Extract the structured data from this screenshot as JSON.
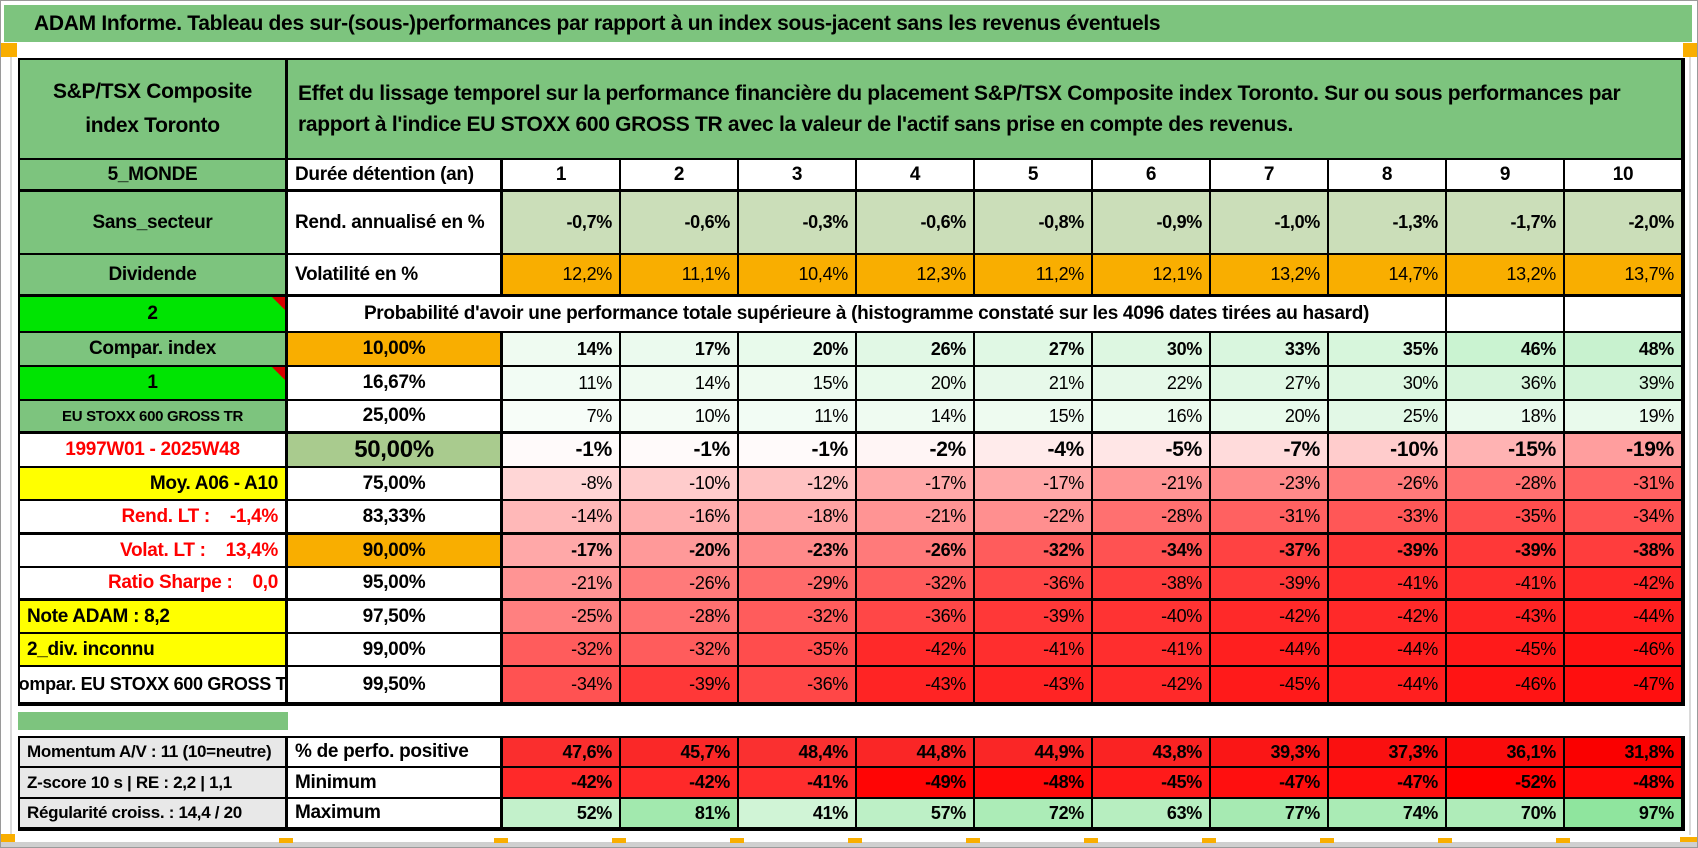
{
  "title": "ADAM Informe. Tableau des sur-(sous-)performances par rapport à un index sous-jacent sans les revenus éventuels",
  "asset_name": "S&P/TSX Composite index Toronto",
  "description": "Effet du lissage temporel sur la performance financière du placement S&P/TSX Composite index Toronto. Sur ou sous performances par rapport à l'indice EU STOXX 600 GROSS TR avec la valeur de l'actif sans prise en compte des revenus.",
  "colors": {
    "header_green": "#7DC47E",
    "bright_green": "#00E402",
    "orange": "#F9AE00",
    "yellow": "#FFFF00",
    "sage": "#CBDEB9",
    "sage_median": "#A9CB8E",
    "gray_label": "#E8E8E8",
    "red_text": "#FF0000"
  },
  "duration_header": {
    "sidebar": "5_MONDE",
    "label": "Durée détention (an)",
    "years": [
      "1",
      "2",
      "3",
      "4",
      "5",
      "6",
      "7",
      "8",
      "9",
      "10"
    ]
  },
  "stat_rows": [
    {
      "sidebar": "Sans_secteur",
      "a_style": "green",
      "label": "Rend. annualisé en %",
      "bold": true,
      "values": [
        "-0,7%",
        "-0,6%",
        "-0,3%",
        "-0,6%",
        "-0,8%",
        "-0,9%",
        "-1,0%",
        "-1,3%",
        "-1,7%",
        "-2,0%"
      ],
      "colors": [
        "#CBDEB9",
        "#CBDEB9",
        "#CBDEB9",
        "#CBDEB9",
        "#CBDEB9",
        "#CBDEB9",
        "#CBDEB9",
        "#CBDEB9",
        "#CBDEB9",
        "#CBDEB9"
      ]
    },
    {
      "sidebar": "Dividende",
      "a_style": "green",
      "label": "Volatilité en %",
      "bold": false,
      "thick": true,
      "values": [
        "12,2%",
        "11,1%",
        "10,4%",
        "12,3%",
        "11,2%",
        "12,1%",
        "13,2%",
        "14,7%",
        "13,2%",
        "13,7%"
      ],
      "colors": [
        "#F9AE00",
        "#F9AE00",
        "#F9AE00",
        "#F9AE00",
        "#F9AE00",
        "#F9AE00",
        "#F9AE00",
        "#F9AE00",
        "#F9AE00",
        "#F9AE00"
      ]
    }
  ],
  "probability_header": {
    "sidebar": "2",
    "text": "Probabilité d'avoir une performance totale supérieure à (histogramme constaté sur les 4096 dates tirées au hasard)"
  },
  "probability_rows": [
    {
      "sidebar": "Compar. index",
      "a_style": "green",
      "threshold": "10,00%",
      "t_style": "orange",
      "bold": true,
      "values": [
        "14%",
        "17%",
        "20%",
        "26%",
        "27%",
        "30%",
        "33%",
        "35%",
        "46%",
        "48%"
      ],
      "colors": [
        "#EFFBF1",
        "#EBFAEE",
        "#E8FAEB",
        "#E1F8E5",
        "#E0F8E4",
        "#DDF7E1",
        "#D9F6DE",
        "#D7F6DC",
        "#CAF3D1",
        "#C8F2CF"
      ]
    },
    {
      "sidebar": "1",
      "a_style": "bright",
      "threshold": "16,67%",
      "t_style": "plain",
      "bold": false,
      "values": [
        "11%",
        "14%",
        "15%",
        "20%",
        "21%",
        "22%",
        "27%",
        "30%",
        "36%",
        "39%"
      ],
      "colors": [
        "#F2FCF4",
        "#EFFBF1",
        "#EEFBF0",
        "#E8FAEB",
        "#E7F9EA",
        "#E6F9E9",
        "#E0F8E4",
        "#DDF7E1",
        "#D6F5DB",
        "#D2F4D8"
      ]
    },
    {
      "sidebar": "EU STOXX 600 GROSS TR",
      "a_style": "smallgreen",
      "threshold": "25,00%",
      "t_style": "plain",
      "bold": false,
      "thick": true,
      "values": [
        "7%",
        "10%",
        "11%",
        "14%",
        "15%",
        "16%",
        "20%",
        "25%",
        "18%",
        "19%"
      ],
      "colors": [
        "#F7FDF8",
        "#F4FCF5",
        "#F2FCF4",
        "#EFFBF1",
        "#EEFBF0",
        "#EDFBEF",
        "#E8FAEB",
        "#E2F8E6",
        "#EAFAED",
        "#E9FAEC"
      ]
    },
    {
      "sidebar": "1997W01 - 2025W48",
      "a_style": "datered",
      "threshold": "50,00%",
      "t_style": "sage",
      "bold": true,
      "big": true,
      "values": [
        "-1%",
        "-1%",
        "-1%",
        "-2%",
        "-4%",
        "-5%",
        "-7%",
        "-10%",
        "-15%",
        "-19%"
      ],
      "colors": [
        "#FFFAFA",
        "#FFFAFA",
        "#FFFAFA",
        "#FFF5F5",
        "#FFEBEB",
        "#FFE6E6",
        "#FFDBDB",
        "#FFCCCC",
        "#FFB3B3",
        "#FF9E9E"
      ]
    },
    {
      "sidebar": "Moy. A06 - A10",
      "a_style": "yright",
      "threshold": "75,00%",
      "t_style": "plain",
      "bold": false,
      "values": [
        "-8%",
        "-10%",
        "-12%",
        "-17%",
        "-17%",
        "-21%",
        "-23%",
        "-26%",
        "-28%",
        "-31%"
      ],
      "colors": [
        "#FFD6D6",
        "#FFCCCC",
        "#FFC2C2",
        "#FFA8A8",
        "#FFA8A8",
        "#FF9494",
        "#FF8A8A",
        "#FF7A7A",
        "#FF7070",
        "#FF6161"
      ]
    },
    {
      "sidebar": "Rend. LT :    -1,4%",
      "a_style": "redright",
      "threshold": "83,33%",
      "t_style": "plain",
      "bold": false,
      "thick": true,
      "values": [
        "-14%",
        "-16%",
        "-18%",
        "-21%",
        "-22%",
        "-28%",
        "-31%",
        "-33%",
        "-35%",
        "-34%"
      ],
      "colors": [
        "#FFB8B8",
        "#FFADAD",
        "#FFA3A3",
        "#FF9494",
        "#FF8F8F",
        "#FF7070",
        "#FF6161",
        "#FF5757",
        "#FF4D4D",
        "#FF5252"
      ]
    },
    {
      "sidebar": "Volat. LT :    13,4%",
      "a_style": "redright",
      "threshold": "90,00%",
      "t_style": "orange",
      "bold": true,
      "values": [
        "-17%",
        "-20%",
        "-23%",
        "-26%",
        "-32%",
        "-34%",
        "-37%",
        "-39%",
        "-39%",
        "-38%"
      ],
      "colors": [
        "#FFA8A8",
        "#FF9999",
        "#FF8A8A",
        "#FF7A7A",
        "#FF5C5C",
        "#FF5252",
        "#FF4242",
        "#FF3838",
        "#FF3838",
        "#FF3D3D"
      ]
    },
    {
      "sidebar": "Ratio Sharpe :    0,0",
      "a_style": "redright",
      "threshold": "95,00%",
      "t_style": "plain",
      "bold": false,
      "thick": true,
      "values": [
        "-21%",
        "-26%",
        "-29%",
        "-32%",
        "-36%",
        "-38%",
        "-39%",
        "-41%",
        "-41%",
        "-42%"
      ],
      "colors": [
        "#FF9494",
        "#FF7A7A",
        "#FF6B6B",
        "#FF5C5C",
        "#FF4747",
        "#FF3D3D",
        "#FF3838",
        "#FF2E2E",
        "#FF2E2E",
        "#FF2929"
      ]
    },
    {
      "sidebar": "Note ADAM : 8,2",
      "a_style": "yleft",
      "threshold": "97,50%",
      "t_style": "plain",
      "bold": false,
      "values": [
        "-25%",
        "-28%",
        "-32%",
        "-36%",
        "-39%",
        "-40%",
        "-42%",
        "-42%",
        "-43%",
        "-44%"
      ],
      "colors": [
        "#FF8080",
        "#FF7070",
        "#FF5C5C",
        "#FF4747",
        "#FF3838",
        "#FF3333",
        "#FF2929",
        "#FF2929",
        "#FF2424",
        "#FF1F1F"
      ]
    },
    {
      "sidebar": "2_div. inconnu",
      "a_style": "yleft",
      "threshold": "99,00%",
      "t_style": "plain",
      "bold": false,
      "values": [
        "-32%",
        "-32%",
        "-35%",
        "-42%",
        "-41%",
        "-41%",
        "-44%",
        "-44%",
        "-45%",
        "-46%"
      ],
      "colors": [
        "#FF5C5C",
        "#FF5C5C",
        "#FF4D4D",
        "#FF2929",
        "#FF2E2E",
        "#FF2E2E",
        "#FF1F1F",
        "#FF1F1F",
        "#FF1A1A",
        "#FF1414"
      ]
    },
    {
      "sidebar": "Compar. EU STOXX 600 GROSS TR",
      "a_style": "plainclip",
      "threshold": "99,50%",
      "t_style": "plain",
      "bold": false,
      "values": [
        "-34%",
        "-39%",
        "-36%",
        "-43%",
        "-43%",
        "-42%",
        "-45%",
        "-44%",
        "-46%",
        "-47%"
      ],
      "colors": [
        "#FF5252",
        "#FF3838",
        "#FF4747",
        "#FF2424",
        "#FF2424",
        "#FF2929",
        "#FF1A1A",
        "#FF1F1F",
        "#FF1414",
        "#FF0F0F"
      ]
    }
  ],
  "bottom_rows": [
    {
      "sidebar": "Momentum A/V : 11 (10=neutre)",
      "label": "% de perfo. positive",
      "values": [
        "47,6%",
        "45,7%",
        "48,4%",
        "44,8%",
        "44,9%",
        "43,8%",
        "39,3%",
        "37,3%",
        "36,1%",
        "31,8%"
      ],
      "colors": [
        "#FA2E2E",
        "#FA2828",
        "#FA3030",
        "#FA2626",
        "#FA2626",
        "#FA2323",
        "#FA1616",
        "#FA1010",
        "#FA0C0C",
        "#FA0000"
      ]
    },
    {
      "sidebar": "Z-score 10 s | RE : 2,2 | 1,1",
      "label": "Minimum",
      "values": [
        "-42%",
        "-42%",
        "-41%",
        "-49%",
        "-48%",
        "-45%",
        "-47%",
        "-47%",
        "-52%",
        "-48%"
      ],
      "colors": [
        "#FF2929",
        "#FF2929",
        "#FF2E2E",
        "#FF0505",
        "#FF0A0A",
        "#FF1A1A",
        "#FF0F0F",
        "#FF0F0F",
        "#FF0000",
        "#FF0A0A"
      ]
    },
    {
      "sidebar": "Régularité croiss. : 14,4 / 20",
      "label": "Maximum",
      "values": [
        "52%",
        "81%",
        "41%",
        "57%",
        "72%",
        "63%",
        "77%",
        "74%",
        "70%",
        "97%"
      ],
      "colors": [
        "#C3F1CB",
        "#A2E9AE",
        "#D0F4D6",
        "#BDF0C6",
        "#ACECB7",
        "#B7EEC0",
        "#A6EAB2",
        "#AAEBB5",
        "#AFECB9",
        "#8FE59E"
      ]
    }
  ]
}
